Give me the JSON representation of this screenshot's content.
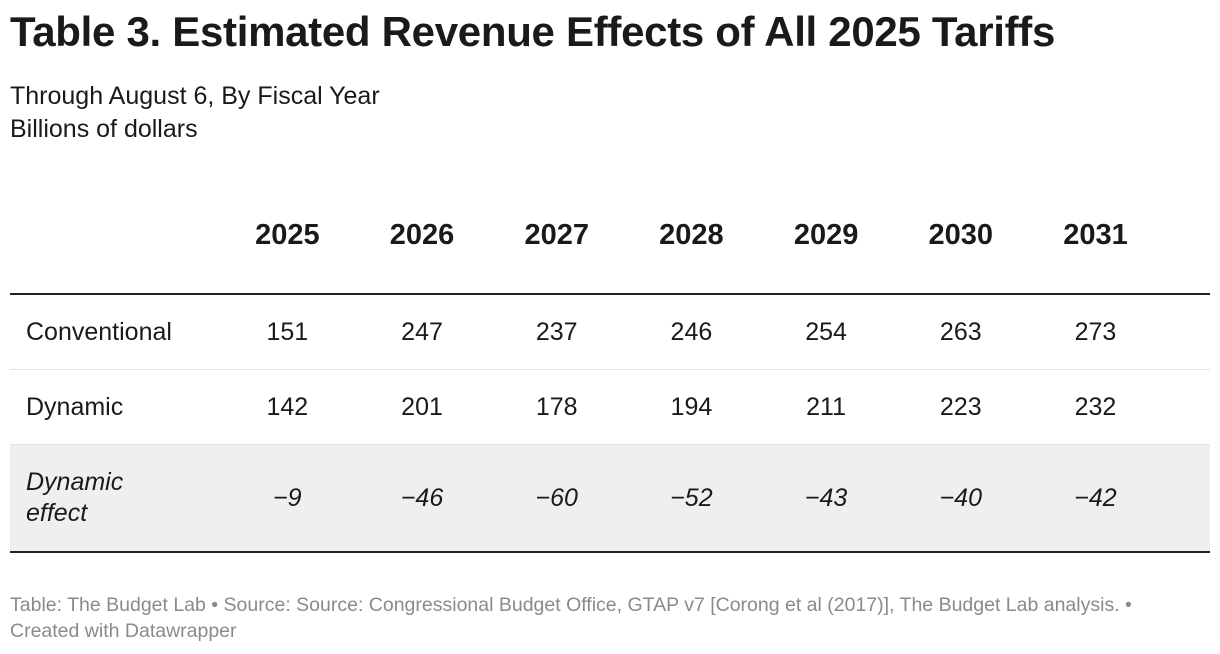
{
  "header": {
    "title": "Table 3. Estimated Revenue Effects of All 2025 Tariffs",
    "subtitle": [
      "Through August 6, By Fiscal Year",
      "Billions of dollars"
    ]
  },
  "table": {
    "columns": [
      "2025",
      "2026",
      "2027",
      "2028",
      "2029",
      "2030",
      "2031"
    ],
    "rows": [
      {
        "label": "Conventional",
        "values": [
          "151",
          "247",
          "237",
          "246",
          "254",
          "263",
          "273"
        ]
      },
      {
        "label": "Dynamic",
        "values": [
          "142",
          "201",
          "178",
          "194",
          "211",
          "223",
          "232"
        ]
      },
      {
        "label": "Dynamic effect",
        "values": [
          "−9",
          "−46",
          "−60",
          "−52",
          "−43",
          "−40",
          "−42"
        ]
      }
    ]
  },
  "footer": {
    "text": "Table: The Budget Lab • Source: Source: Congressional Budget Office, GTAP v7 [Corong et al (2017)], The Budget Lab analysis. • Created with Datawrapper"
  }
}
